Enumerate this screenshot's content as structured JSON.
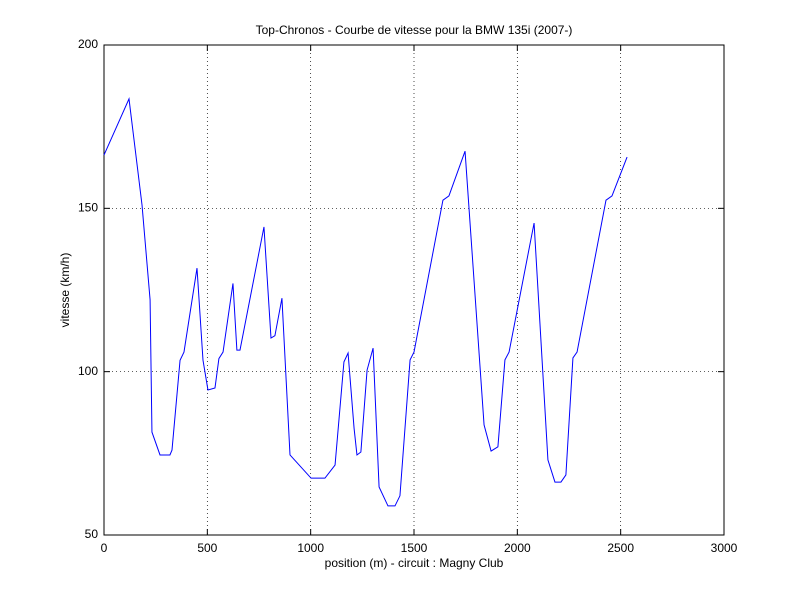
{
  "chart_data": {
    "type": "line",
    "title": "Top-Chronos - Courbe de vitesse pour la BMW 135i (2007-)",
    "x_label": "position (m) - circuit : Magny Club",
    "y_label": "vitesse (km/h)",
    "x": [
      0,
      121,
      184,
      223,
      232,
      271,
      319,
      329,
      368,
      387,
      450,
      479,
      503,
      537,
      556,
      576,
      624,
      643,
      658,
      774,
      808,
      827,
      861,
      900,
      1002,
      1069,
      1118,
      1161,
      1181,
      1210,
      1224,
      1243,
      1273,
      1302,
      1331,
      1374,
      1408,
      1432,
      1481,
      1500,
      1640,
      1669,
      1747,
      1839,
      1873,
      1906,
      1940,
      1960,
      2081,
      2148,
      2182,
      2211,
      2235,
      2269,
      2289,
      2429,
      2458,
      2531
    ],
    "values": [
      166.3,
      183.5,
      151,
      122,
      81.5,
      74.5,
      74.5,
      76,
      103.5,
      106,
      131.7,
      103.5,
      94.4,
      95,
      104,
      106,
      127,
      106.6,
      106.6,
      144.3,
      110.3,
      111,
      122.5,
      74.5,
      67.4,
      67.4,
      71.4,
      103,
      105.7,
      82.7,
      74.5,
      75.4,
      100.5,
      107.2,
      64.7,
      58.9,
      58.9,
      62,
      103.6,
      106,
      152.5,
      153.8,
      167.5,
      83.7,
      75.7,
      77,
      103.6,
      106,
      145.5,
      73,
      66.2,
      66.2,
      68.4,
      104.2,
      106,
      152.5,
      153.8,
      165.7
    ],
    "color": "#0000ff",
    "xlim": [
      0,
      3000
    ],
    "xticks": [
      0,
      500,
      1000,
      1500,
      2000,
      2500,
      3000
    ],
    "ylim": [
      50,
      200
    ],
    "yticks": [
      50,
      100,
      150,
      200
    ],
    "grid": true
  }
}
